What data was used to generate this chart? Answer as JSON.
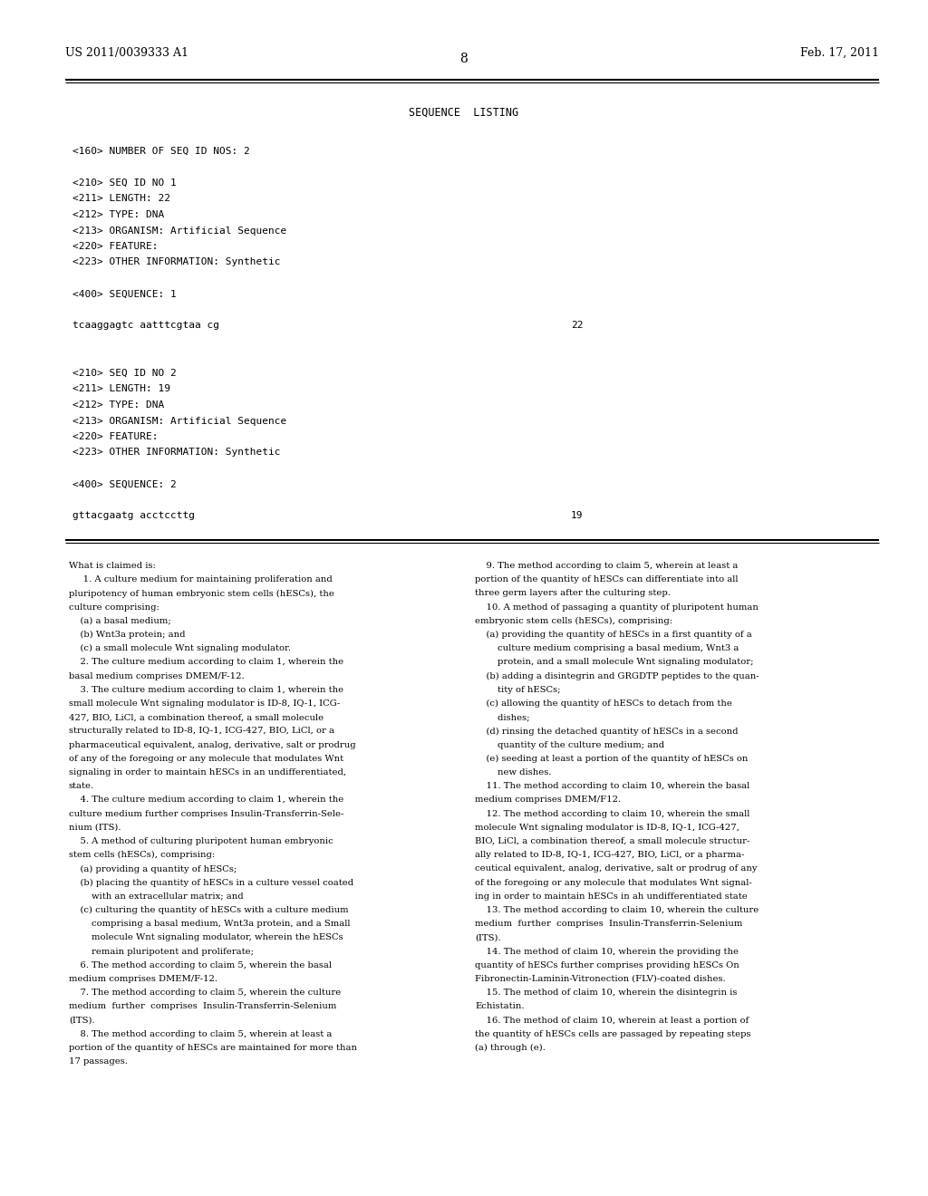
{
  "background_color": "#ffffff",
  "page_width": 10.24,
  "page_height": 13.2,
  "header_left": "US 2011/0039333 A1",
  "header_right": "Feb. 17, 2011",
  "page_number": "8",
  "seq_section_title": "SEQUENCE  LISTING",
  "seq_lines": [
    "<160> NUMBER OF SEQ ID NOS: 2",
    "",
    "<210> SEQ ID NO 1",
    "<211> LENGTH: 22",
    "<212> TYPE: DNA",
    "<213> ORGANISM: Artificial Sequence",
    "<220> FEATURE:",
    "<223> OTHER INFORMATION: Synthetic",
    "",
    "<400> SEQUENCE: 1",
    "",
    "tcaaggagtc aatttcgtaa cg",
    "",
    "",
    "<210> SEQ ID NO 2",
    "<211> LENGTH: 19",
    "<212> TYPE: DNA",
    "<213> ORGANISM: Artificial Sequence",
    "<220> FEATURE:",
    "<223> OTHER INFORMATION: Synthetic",
    "",
    "<400> SEQUENCE: 2",
    "",
    "gttacgaatg acctccttg"
  ],
  "seq_num_22_idx": 11,
  "seq_num_19_idx": 23,
  "claims_left": [
    "What is claimed is:",
    "     1. A culture medium for maintaining proliferation and",
    "pluripotency of human embryonic stem cells (hESCs), the",
    "culture comprising:",
    "    (a) a basal medium;",
    "    (b) Wnt3a protein; and",
    "    (c) a small molecule Wnt signaling modulator.",
    "    2. The culture medium according to claim 1, wherein the",
    "basal medium comprises DMEM/F-12.",
    "    3. The culture medium according to claim 1, wherein the",
    "small molecule Wnt signaling modulator is ID-8, IQ-1, ICG-",
    "427, BIO, LiCl, a combination thereof, a small molecule",
    "structurally related to ID-8, IQ-1, ICG-427, BIO, LiCl, or a",
    "pharmaceutical equivalent, analog, derivative, salt or prodrug",
    "of any of the foregoing or any molecule that modulates Wnt",
    "signaling in order to maintain hESCs in an undifferentiated,",
    "state.",
    "    4. The culture medium according to claim 1, wherein the",
    "culture medium further comprises Insulin-Transferrin-Sele-",
    "nium (ITS).",
    "    5. A method of culturing pluripotent human embryonic",
    "stem cells (hESCs), comprising:",
    "    (a) providing a quantity of hESCs;",
    "    (b) placing the quantity of hESCs in a culture vessel coated",
    "        with an extracellular matrix; and",
    "    (c) culturing the quantity of hESCs with a culture medium",
    "        comprising a basal medium, Wnt3a protein, and a Small",
    "        molecule Wnt signaling modulator, wherein the hESCs",
    "        remain pluripotent and proliferate;",
    "    6. The method according to claim 5, wherein the basal",
    "medium comprises DMEM/F-12.",
    "    7. The method according to claim 5, wherein the culture",
    "medium  further  comprises  Insulin-Transferrin-Selenium",
    "(ITS).",
    "    8. The method according to claim 5, wherein at least a",
    "portion of the quantity of hESCs are maintained for more than",
    "17 passages."
  ],
  "claims_right": [
    "    9. The method according to claim 5, wherein at least a",
    "portion of the quantity of hESCs can differentiate into all",
    "three germ layers after the culturing step.",
    "    10. A method of passaging a quantity of pluripotent human",
    "embryonic stem cells (hESCs), comprising:",
    "    (a) providing the quantity of hESCs in a first quantity of a",
    "        culture medium comprising a basal medium, Wnt3 a",
    "        protein, and a small molecule Wnt signaling modulator;",
    "    (b) adding a disintegrin and GRGDTP peptides to the quan-",
    "        tity of hESCs;",
    "    (c) allowing the quantity of hESCs to detach from the",
    "        dishes;",
    "    (d) rinsing the detached quantity of hESCs in a second",
    "        quantity of the culture medium; and",
    "    (e) seeding at least a portion of the quantity of hESCs on",
    "        new dishes.",
    "    11. The method according to claim 10, wherein the basal",
    "medium comprises DMEM/F12.",
    "    12. The method according to claim 10, wherein the small",
    "molecule Wnt signaling modulator is ID-8, IQ-1, ICG-427,",
    "BIO, LiCl, a combination thereof, a small molecule structur-",
    "ally related to ID-8, IQ-1, ICG-427, BIO, LiCl, or a pharma-",
    "ceutical equivalent, analog, derivative, salt or prodrug of any",
    "of the foregoing or any molecule that modulates Wnt signal-",
    "ing in order to maintain hESCs in ah undifferentiated state",
    "    13. The method according to claim 10, wherein the culture",
    "medium  further  comprises  Insulin-Transferrin-Selenium",
    "(ITS).",
    "    14. The method of claim 10, wherein the providing the",
    "quantity of hESCs further comprises providing hESCs On",
    "Fibronectin-Laminin-Vitronection (FLV)-coated dishes.",
    "    15. The method of claim 10, wherein the disintegrin is",
    "Echistatin.",
    "    16. The method of claim 10, wherein at least a portion of",
    "the quantity of hESCs cells are passaged by repeating steps",
    "(a) through (e)."
  ]
}
